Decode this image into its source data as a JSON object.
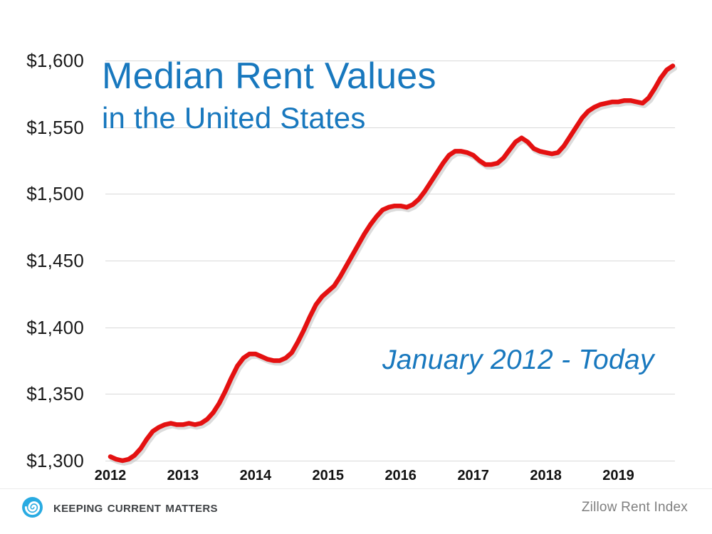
{
  "chart_data": {
    "type": "line",
    "title": "Median Rent Values",
    "subtitle": "in the United States",
    "annotation": "January 2012 - Today",
    "x_range_label": "January 2012 - Today",
    "x_tick_labels": [
      "2012",
      "2013",
      "2014",
      "2015",
      "2016",
      "2017",
      "2018",
      "2019"
    ],
    "ylim": [
      1300,
      1600
    ],
    "yticks": [
      1300,
      1350,
      1400,
      1450,
      1500,
      1550,
      1600
    ],
    "ytick_labels": [
      "$1,300",
      "$1,350",
      "$1,400",
      "$1,450",
      "$1,500",
      "$1,550",
      "$1,600"
    ],
    "grid": "horizontal",
    "legend": "none",
    "line_color": "#e41111",
    "series": [
      {
        "name": "Median Rent (Zillow Rent Index)",
        "cadence": "monthly",
        "start": "2012-01",
        "values": [
          1303,
          1301,
          1300,
          1301,
          1304,
          1309,
          1316,
          1322,
          1325,
          1327,
          1328,
          1327,
          1327,
          1328,
          1327,
          1328,
          1331,
          1336,
          1343,
          1352,
          1362,
          1371,
          1377,
          1380,
          1380,
          1378,
          1376,
          1375,
          1375,
          1377,
          1381,
          1389,
          1398,
          1408,
          1417,
          1423,
          1427,
          1431,
          1438,
          1446,
          1454,
          1462,
          1470,
          1477,
          1483,
          1488,
          1490,
          1491,
          1491,
          1490,
          1492,
          1496,
          1502,
          1509,
          1516,
          1523,
          1529,
          1532,
          1532,
          1531,
          1529,
          1525,
          1522,
          1522,
          1523,
          1527,
          1533,
          1539,
          1542,
          1539,
          1534,
          1532,
          1531,
          1530,
          1531,
          1536,
          1543,
          1550,
          1557,
          1562,
          1565,
          1567,
          1568,
          1569,
          1569,
          1570,
          1570,
          1569,
          1568,
          1572,
          1579,
          1587,
          1593,
          1596
        ]
      }
    ]
  },
  "footer": {
    "brand": "Keeping Current Matters",
    "source": "Zillow Rent Index"
  },
  "colors": {
    "accent_blue": "#1878be",
    "line_red": "#e41111",
    "grid_gray": "#d9d9d9",
    "axis_text": "#1a1a1a",
    "muted_text": "#7f7f7f",
    "logo_blue": "#29abe2",
    "brand_text": "#3f4245"
  }
}
